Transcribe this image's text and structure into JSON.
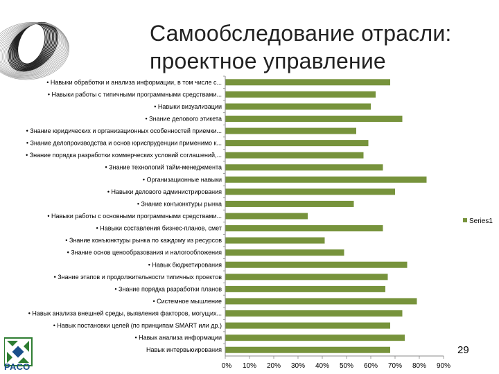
{
  "title": {
    "line1": "Самообследование отрасли:",
    "line2": "проектное управление"
  },
  "page_number": "29",
  "logo": {
    "text": "РАСО",
    "icon": "paco-logo-icon"
  },
  "decoration": {
    "icon": "attractor-sketch-icon"
  },
  "chart_data": {
    "type": "bar",
    "orientation": "horizontal",
    "categories": [
      "• Навыки обработки и анализа информации, в том числе с...",
      "• Навыки работы с типичными программными средствами...",
      "• Навыки визуализации",
      "• Знание делового этикета",
      "• Знание юридических и организационных особенностей приемки...",
      "• Знание делопроизводства и основ юриспруденции применимо к...",
      "• Знание порядка разработки коммерческих условий соглашений,...",
      "• Знание технологий тайм-менеджмента",
      "• Организационные навыки",
      "• Навыки делового администрирования",
      "• Знание конъюнктуры рынка",
      "• Навыки работы с основными программными средствами...",
      "• Навыки составления бизнес-планов, смет",
      "• Знание конъюнктуры рынка по каждому из ресурсов",
      "• Знание основ ценообразования и налогообложения",
      "• Навык бюджетирования",
      "• Знание этапов и продолжительности типичных проектов",
      "• Знание порядка разработки планов",
      "• Системное мышление",
      "• Навык анализа внешней среды, выявления факторов, могущих...",
      "• Навык постановки целей (по принципам SMART или др.)",
      "• Навык анализа информации",
      "Навык интервьюирования"
    ],
    "series": [
      {
        "name": "Series1",
        "values": [
          0.68,
          0.62,
          0.6,
          0.73,
          0.54,
          0.59,
          0.57,
          0.65,
          0.83,
          0.7,
          0.53,
          0.34,
          0.65,
          0.41,
          0.49,
          0.75,
          0.67,
          0.66,
          0.79,
          0.73,
          0.68,
          0.74,
          0.68
        ]
      }
    ],
    "x_ticks": [
      "0%",
      "10%",
      "20%",
      "30%",
      "40%",
      "50%",
      "60%",
      "70%",
      "80%",
      "90%"
    ],
    "xlim": [
      0,
      0.9
    ],
    "bar_color": "#77933c",
    "legend_position": "right",
    "grid": false
  }
}
